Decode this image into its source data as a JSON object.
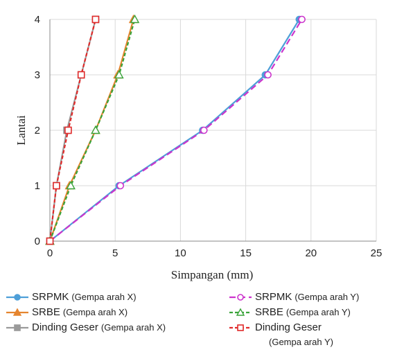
{
  "chart_data": {
    "type": "line",
    "xlabel": "Simpangan (mm)",
    "ylabel": "Lantai",
    "xlim": [
      0,
      25
    ],
    "ylim": [
      0,
      4
    ],
    "xticks": [
      "0",
      "5",
      "10",
      "15",
      "20",
      "25"
    ],
    "yticks": [
      "0",
      "1",
      "2",
      "3",
      "4"
    ],
    "grid": true,
    "legend_position": "bottom",
    "series": [
      {
        "name": "SRPMK",
        "note": "(Gempa arah X)",
        "color": "#4e9fd8",
        "dash": "solid",
        "marker": "circle",
        "filled": true,
        "x": [
          0,
          5.3,
          11.7,
          16.5,
          19.1
        ],
        "y": [
          0,
          1,
          2,
          3,
          4
        ]
      },
      {
        "name": "SRBE",
        "note": "(Gempa arah X)",
        "color": "#e5852f",
        "dash": "solid",
        "marker": "triangle",
        "filled": true,
        "x": [
          0,
          1.5,
          3.5,
          5.2,
          6.4
        ],
        "y": [
          0,
          1,
          2,
          3,
          4
        ]
      },
      {
        "name": "Dinding Geser",
        "note": "(Gempa arah X)",
        "color": "#9a9a9a",
        "dash": "solid",
        "marker": "square",
        "filled": true,
        "x": [
          0,
          0.5,
          1.3,
          2.4,
          3.5
        ],
        "y": [
          0,
          1,
          2,
          3,
          4
        ]
      },
      {
        "name": "SRPMK",
        "note": "(Gempa arah Y)",
        "color": "#cc33cc",
        "dash": "long",
        "marker": "circle",
        "filled": false,
        "x": [
          0,
          5.4,
          11.8,
          16.7,
          19.3
        ],
        "y": [
          0,
          1,
          2,
          3,
          4
        ]
      },
      {
        "name": "SRBE",
        "note": "(Gempa arah Y)",
        "color": "#3aa33a",
        "dash": "short",
        "marker": "triangle",
        "filled": false,
        "x": [
          0,
          1.6,
          3.5,
          5.3,
          6.5
        ],
        "y": [
          0,
          1,
          2,
          3,
          4
        ]
      },
      {
        "name": "Dinding Geser",
        "note": "(Gempa arah Y)",
        "color": "#e02a2a",
        "dash": "short",
        "marker": "square",
        "filled": false,
        "x": [
          0,
          0.5,
          1.4,
          2.4,
          3.5
        ],
        "y": [
          0,
          1,
          2,
          3,
          4
        ]
      }
    ]
  }
}
